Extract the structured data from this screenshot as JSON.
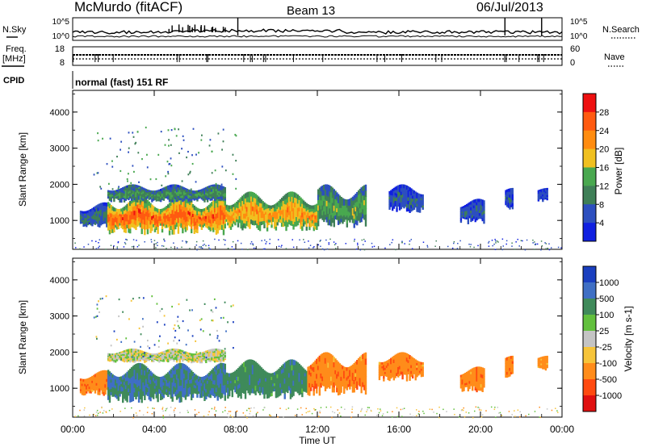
{
  "header": {
    "station": "McMurdo (fitACF)",
    "beam": "Beam 13",
    "date": "06/Jul/2013"
  },
  "panels": {
    "noise": {
      "left_label": "N.Sky",
      "right_label": "N.Search",
      "left_ticks": [
        "10^5",
        "10^0"
      ],
      "right_ticks": [
        "10^5",
        "10^0"
      ]
    },
    "freq": {
      "left_label_1": "Freq.",
      "left_label_2": "[MHz]",
      "right_label": "Nave",
      "left_ticks": [
        "18",
        "8"
      ],
      "right_ticks": [
        "60",
        "0"
      ]
    },
    "cpid": {
      "label": "CPID",
      "text": "normal (fast) 151 RF"
    }
  },
  "colors": {
    "power": [
      "#1020e0",
      "#2d4fbf",
      "#3f7f57",
      "#49a84f",
      "#f0c020",
      "#ff8c10",
      "#ff5a10",
      "#ee1010"
    ],
    "velocity": [
      "#1a3fbf",
      "#3f6fc4",
      "#3f8a5a",
      "#62c03d",
      "#c4c4c4",
      "#f6c43a",
      "#ff8c1a",
      "#ff4a10",
      "#e01010"
    ]
  },
  "chart_data": [
    {
      "type": "heatmap",
      "name": "power",
      "ylabel": "Slant Range [km]",
      "ylim": [
        200,
        4600
      ],
      "yticks": [
        "4000",
        "3000",
        "2000",
        "1000"
      ],
      "xlim": [
        0,
        24
      ],
      "colorbar": {
        "label": "Power [dB]",
        "ticks": [
          "28",
          "24",
          "20",
          "16",
          "12",
          "8",
          "4"
        ],
        "range": [
          0,
          32
        ]
      },
      "echo_regions": [
        {
          "t0": 0.35,
          "t1": 1.7,
          "r0": 800,
          "r1": 1500,
          "level": 9
        },
        {
          "t0": 1.7,
          "t1": 7.5,
          "r0": 600,
          "r1": 1700,
          "level": 26
        },
        {
          "t0": 1.7,
          "t1": 7.5,
          "r0": 1500,
          "r1": 2000,
          "level": 12
        },
        {
          "t0": 7.5,
          "t1": 12.0,
          "r0": 700,
          "r1": 1800,
          "level": 22
        },
        {
          "t0": 12.0,
          "t1": 14.4,
          "r0": 800,
          "r1": 2000,
          "level": 14
        },
        {
          "t0": 15.5,
          "t1": 17.2,
          "r0": 1200,
          "r1": 2000,
          "level": 7
        },
        {
          "t0": 19.0,
          "t1": 20.2,
          "r0": 900,
          "r1": 1600,
          "level": 7
        },
        {
          "t0": 21.2,
          "t1": 21.6,
          "r0": 1300,
          "r1": 1900,
          "level": 6
        },
        {
          "t0": 22.8,
          "t1": 23.3,
          "r0": 1500,
          "r1": 1900,
          "level": 6
        }
      ]
    },
    {
      "type": "heatmap",
      "name": "velocity",
      "ylabel": "Slant Range [km]",
      "ylim": [
        200,
        4600
      ],
      "yticks": [
        "4000",
        "3000",
        "2000",
        "1000"
      ],
      "xlabel": "Time UT",
      "xlim": [
        0,
        24
      ],
      "xticks": [
        "00:00",
        "04:00",
        "08:00",
        "12:00",
        "16:00",
        "20:00",
        "00:00"
      ],
      "colorbar": {
        "label": "Velocity [m s-1]",
        "ticks": [
          "1000",
          "500",
          "100",
          "25",
          "-25",
          "-100",
          "-500",
          "-1000"
        ]
      },
      "echo_regions": [
        {
          "t0": 0.35,
          "t1": 1.7,
          "r0": 800,
          "r1": 1500,
          "velocity": -150
        },
        {
          "t0": 1.7,
          "t1": 7.5,
          "r0": 600,
          "r1": 1700,
          "velocity": 200
        },
        {
          "t0": 1.7,
          "t1": 7.5,
          "r0": 1700,
          "r1": 2100,
          "velocity": 0
        },
        {
          "t0": 7.5,
          "t1": 11.5,
          "r0": 700,
          "r1": 1800,
          "velocity": 150
        },
        {
          "t0": 11.5,
          "t1": 14.4,
          "r0": 800,
          "r1": 2000,
          "velocity": -150
        },
        {
          "t0": 15.0,
          "t1": 17.2,
          "r0": 1200,
          "r1": 2000,
          "velocity": -150
        },
        {
          "t0": 19.0,
          "t1": 20.2,
          "r0": 900,
          "r1": 1600,
          "velocity": -150
        },
        {
          "t0": 21.2,
          "t1": 21.6,
          "r0": 1300,
          "r1": 1900,
          "velocity": -150
        },
        {
          "t0": 22.8,
          "t1": 23.3,
          "r0": 1500,
          "r1": 1900,
          "velocity": -100
        }
      ]
    }
  ]
}
